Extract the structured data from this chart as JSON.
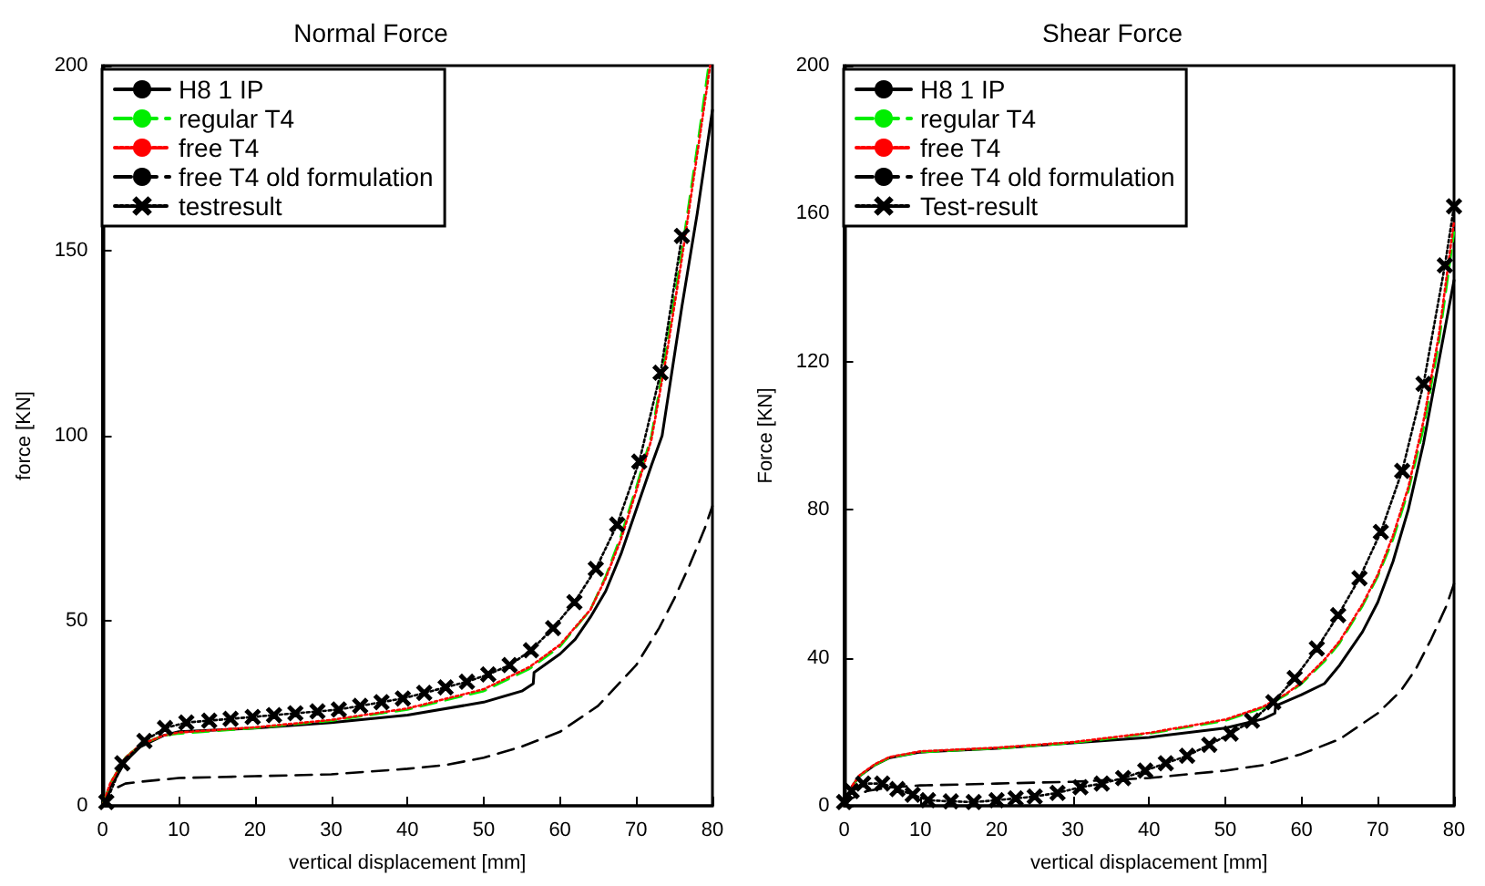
{
  "chart_data": [
    {
      "type": "line",
      "title": "Normal Force",
      "xlabel": "vertical displacement [mm]",
      "ylabel": "force [KN]",
      "xlim": [
        0,
        80
      ],
      "xticks": [
        0,
        10,
        20,
        30,
        40,
        50,
        60,
        70,
        80
      ],
      "ylim": [
        0,
        200
      ],
      "yticks": [
        0,
        50,
        100,
        150,
        200
      ],
      "grid": false,
      "legend": "top left",
      "series": [
        {
          "name": "H8 1 IP",
          "color": "#000000",
          "line_style": "solid",
          "marker": "none",
          "x": [
            0,
            1,
            3,
            5,
            8,
            10,
            20,
            30,
            40,
            50,
            55,
            56.5,
            56.6,
            60,
            62,
            64,
            66,
            68,
            70,
            72,
            73.4,
            76,
            78,
            80
          ],
          "values": [
            0,
            5,
            12,
            16,
            19,
            20,
            21,
            22.5,
            24.5,
            28,
            31,
            33,
            36,
            41,
            45,
            51,
            58,
            68,
            80,
            92,
            100,
            135,
            160,
            188
          ]
        },
        {
          "name": "regular T4",
          "color": "#00ee00",
          "line_style": "dashed",
          "marker": "none",
          "x": [
            0,
            1,
            3,
            5,
            8,
            10,
            20,
            30,
            40,
            50,
            56,
            60,
            64,
            66,
            68,
            70,
            72,
            74,
            76,
            78,
            79.5
          ],
          "values": [
            0,
            6,
            13,
            16.5,
            19,
            19.5,
            21,
            23,
            26,
            31,
            37,
            43,
            53,
            62,
            73,
            86,
            100,
            124,
            150,
            178,
            200
          ]
        },
        {
          "name": "free T4",
          "color": "#ff0000",
          "line_style": "dotted",
          "marker": "none",
          "x": [
            0,
            1,
            3,
            5,
            8,
            10,
            20,
            30,
            40,
            50,
            56,
            60,
            64,
            66,
            68,
            70,
            72,
            74,
            76,
            78,
            79.7
          ],
          "values": [
            0,
            6,
            13,
            16.5,
            19,
            19.8,
            21.2,
            23.2,
            26.3,
            31.5,
            37.5,
            43.5,
            53,
            61.5,
            72,
            85,
            99,
            122,
            148,
            176,
            200
          ]
        },
        {
          "name": "free T4 old formulation",
          "color": "#000000",
          "line_style": "dashed",
          "marker": "none",
          "x": [
            0,
            1,
            3,
            5,
            10,
            20,
            30,
            40,
            45,
            50,
            55,
            60,
            65,
            70,
            73,
            75,
            77,
            79,
            80
          ],
          "values": [
            0,
            4,
            6,
            6.5,
            7.5,
            8,
            8.5,
            10,
            11,
            13,
            16,
            20,
            27,
            38,
            48,
            56,
            65,
            75,
            81
          ]
        },
        {
          "name": "testresult",
          "color": "#000000",
          "line_style": "dotted",
          "marker": "cross",
          "x": [
            0.5,
            2.6,
            5.5,
            8.2,
            11,
            14,
            16.8,
            19.7,
            22.5,
            25.3,
            28.2,
            31,
            33.8,
            36.6,
            39.4,
            42.2,
            45,
            47.8,
            50.6,
            53.4,
            56.2,
            59.1,
            61.9,
            64.7,
            67.5,
            70.4,
            73.2,
            76
          ],
          "values": [
            1,
            11.5,
            17.5,
            21,
            22.5,
            23,
            23.5,
            24,
            24.5,
            25,
            25.5,
            26,
            27,
            28,
            29,
            30.5,
            32,
            33.5,
            35.5,
            38,
            42,
            48,
            55,
            64,
            76,
            93,
            117,
            154
          ]
        }
      ]
    },
    {
      "type": "line",
      "title": "Shear Force",
      "xlabel": "vertical displacement [mm]",
      "ylabel": "Force [KN]",
      "xlim": [
        0,
        80
      ],
      "xticks": [
        0,
        10,
        20,
        30,
        40,
        50,
        60,
        70,
        80
      ],
      "ylim": [
        0,
        200
      ],
      "yticks": [
        0,
        40,
        80,
        120,
        160,
        200
      ],
      "grid": false,
      "legend": "top left",
      "series": [
        {
          "name": "H8 1 IP",
          "color": "#000000",
          "line_style": "solid",
          "marker": "none",
          "x": [
            0,
            1,
            2,
            4,
            6,
            10,
            20,
            30,
            40,
            50,
            55,
            56.5,
            56.6,
            60,
            63,
            65,
            68,
            70,
            72,
            74,
            76,
            78,
            80
          ],
          "values": [
            0,
            5,
            8,
            11,
            13,
            14.5,
            15.5,
            17,
            18.5,
            21,
            23.5,
            25,
            27,
            30,
            33,
            38,
            47,
            55,
            66,
            80,
            98,
            120,
            142
          ]
        },
        {
          "name": "regular T4",
          "color": "#00ee00",
          "line_style": "dashed",
          "marker": "none",
          "x": [
            0,
            1,
            2,
            4,
            6,
            10,
            20,
            30,
            40,
            50,
            55,
            58,
            60,
            63,
            65,
            68,
            70,
            72,
            74,
            76,
            78,
            80
          ],
          "values": [
            0,
            5,
            8,
            11,
            13,
            14.5,
            15.5,
            17,
            19.5,
            23,
            26.5,
            30,
            33,
            39,
            44,
            54,
            62,
            72,
            85,
            102,
            125,
            155
          ]
        },
        {
          "name": "free T4",
          "color": "#ff0000",
          "line_style": "dotted",
          "marker": "none",
          "x": [
            0,
            1,
            2,
            4,
            6,
            10,
            20,
            30,
            40,
            50,
            55,
            58,
            60,
            63,
            65,
            68,
            70,
            72,
            74,
            76,
            78,
            80
          ],
          "values": [
            0,
            5.2,
            8.2,
            11.2,
            13.2,
            14.7,
            15.7,
            17.2,
            19.7,
            23.3,
            26.8,
            30.3,
            33.3,
            39.5,
            44.5,
            54.5,
            62.5,
            73,
            86,
            104,
            127,
            158
          ]
        },
        {
          "name": "free T4 old formulation",
          "color": "#000000",
          "line_style": "dashed",
          "marker": "none",
          "x": [
            0,
            1,
            3,
            6,
            10,
            20,
            30,
            40,
            50,
            55,
            60,
            65,
            70,
            73,
            75,
            77,
            79,
            80
          ],
          "values": [
            0,
            2,
            4,
            5,
            5.5,
            6,
            6.5,
            7.5,
            9.5,
            11,
            14,
            18,
            25,
            31,
            37,
            45,
            54,
            60
          ]
        },
        {
          "name": "Test-result",
          "color": "#000000",
          "line_style": "dotted",
          "marker": "cross",
          "x": [
            0,
            1,
            2.5,
            5,
            7,
            9,
            11,
            14,
            17,
            20,
            22.5,
            25,
            28,
            31,
            33.8,
            36.6,
            39.5,
            42.2,
            45,
            47.9,
            50.7,
            53.5,
            56.3,
            59.1,
            62,
            64.8,
            67.6,
            70.4,
            73.2,
            76,
            78.8,
            80
          ],
          "values": [
            1,
            4,
            6,
            6,
            4.5,
            3,
            1.5,
            1.2,
            1,
            1.5,
            2,
            2.5,
            3.5,
            5,
            6,
            7.5,
            9.5,
            11.5,
            13.5,
            16.5,
            19.5,
            23,
            28,
            34.5,
            42.5,
            51.5,
            61.5,
            74,
            90.5,
            114,
            146,
            162
          ]
        }
      ]
    }
  ]
}
